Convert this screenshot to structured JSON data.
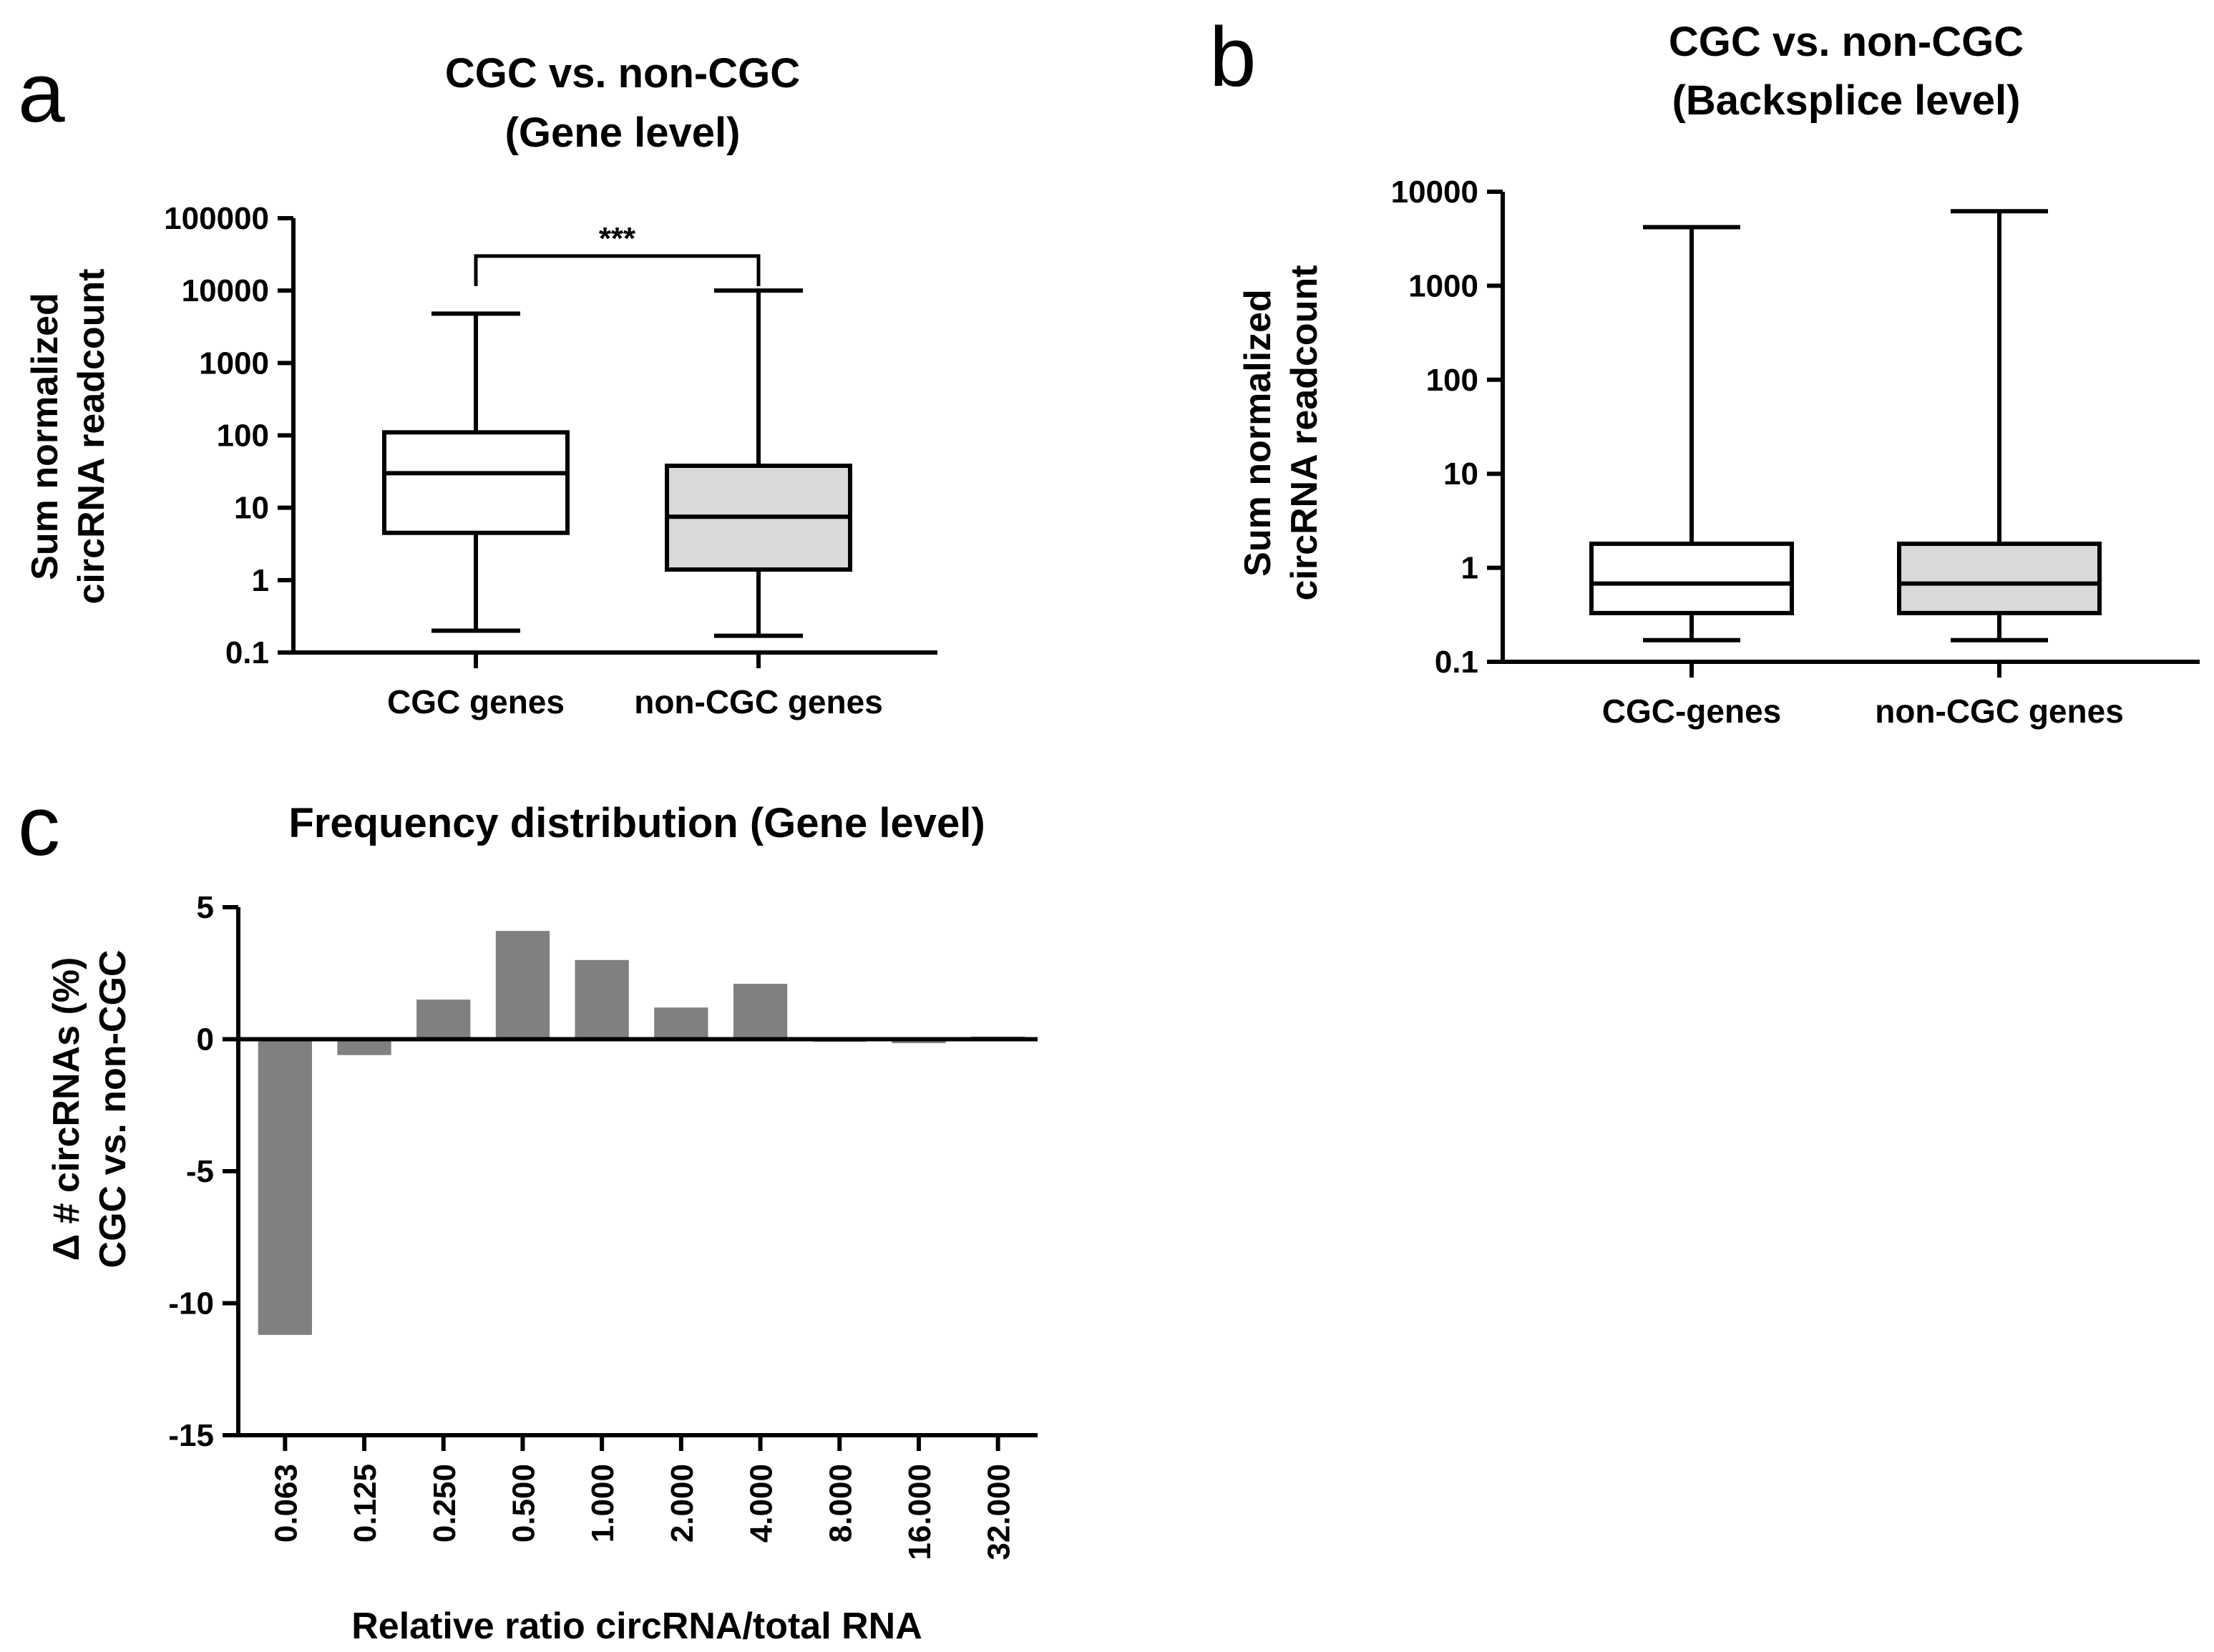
{
  "chart_data": [
    {
      "panel": "a",
      "type": "boxplot",
      "title_lines": [
        "CGC vs. non-CGC",
        "(Gene level)"
      ],
      "ylabel_lines": [
        "Sum normalized",
        "circRNA readcount"
      ],
      "yscale": "log",
      "ylim": [
        0.1,
        100000
      ],
      "yticks": [
        0.1,
        1,
        10,
        100,
        1000,
        10000,
        100000
      ],
      "ytick_labels": [
        "0.1",
        "1",
        "10",
        "100",
        "1000",
        "10000",
        "100000"
      ],
      "categories": [
        "CGC genes",
        "non-CGC genes"
      ],
      "boxes": [
        {
          "name": "CGC genes",
          "min": 0.2,
          "q1": 4.5,
          "median": 30,
          "q3": 110,
          "max": 4800,
          "fill": "#ffffff"
        },
        {
          "name": "non-CGC genes",
          "min": 0.17,
          "q1": 1.4,
          "median": 7.5,
          "q3": 38,
          "max": 10000,
          "fill": "#d9d9d9"
        }
      ],
      "significance": {
        "label": "***",
        "between": [
          0,
          1
        ],
        "y": 30000
      }
    },
    {
      "panel": "b",
      "type": "boxplot",
      "title_lines": [
        "CGC vs. non-CGC",
        "(Backsplice level)"
      ],
      "ylabel_lines": [
        "Sum normalized",
        "circRNA readcount"
      ],
      "yscale": "log",
      "ylim": [
        0.1,
        10000
      ],
      "yticks": [
        0.1,
        1,
        10,
        100,
        1000,
        10000
      ],
      "ytick_labels": [
        "0.1",
        "1",
        "10",
        "100",
        "1000",
        "10000"
      ],
      "categories": [
        "CGC-genes",
        "non-CGC genes"
      ],
      "boxes": [
        {
          "name": "CGC-genes",
          "min": 0.17,
          "q1": 0.33,
          "median": 0.68,
          "q3": 1.8,
          "max": 4200,
          "fill": "#ffffff"
        },
        {
          "name": "non-CGC genes",
          "min": 0.17,
          "q1": 0.33,
          "median": 0.68,
          "q3": 1.8,
          "max": 6200,
          "fill": "#d9d9d9"
        }
      ]
    },
    {
      "panel": "c",
      "type": "bar",
      "title": "Frequency distribution (Gene level)",
      "ylabel_lines": [
        "Δ # circRNAs (%)",
        "CGC vs. non-CGC"
      ],
      "xlabel": "Relative ratio circRNA/total RNA",
      "ylim": [
        -15,
        5
      ],
      "yticks": [
        -15,
        -10,
        -5,
        0,
        5
      ],
      "ytick_labels": [
        "-15",
        "-10",
        "-5",
        "0",
        "5"
      ],
      "categories": [
        "0.063",
        "0.125",
        "0.250",
        "0.500",
        "1.000",
        "2.000",
        "4.000",
        "8.000",
        "16.000",
        "32.000"
      ],
      "values": [
        -11.2,
        -0.6,
        1.5,
        4.1,
        3.0,
        1.2,
        2.1,
        -0.1,
        -0.15,
        0.1
      ],
      "bar_color": "#808080"
    }
  ]
}
